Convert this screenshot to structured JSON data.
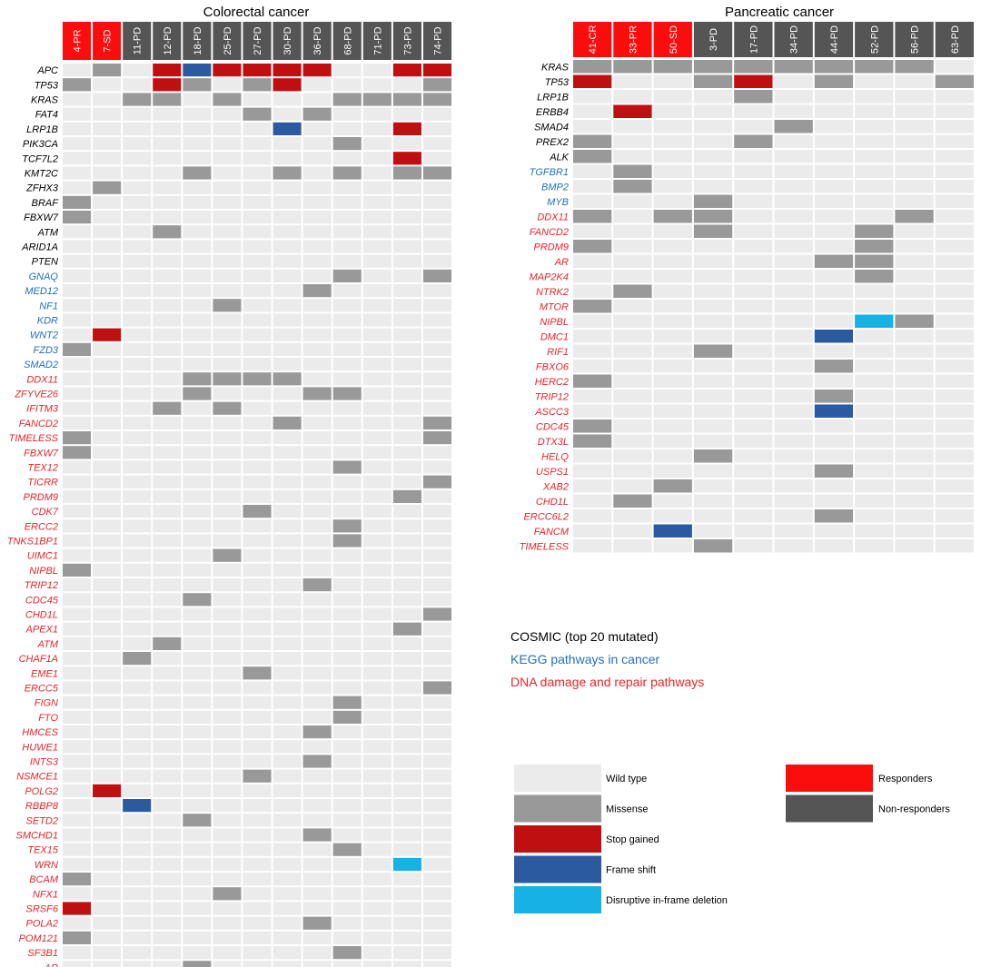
{
  "chart_data": [
    {
      "type": "heatmap",
      "title": "Colorectal cancer",
      "columns": [
        {
          "label": "4-PR",
          "group": "responder"
        },
        {
          "label": "7-SD",
          "group": "responder"
        },
        {
          "label": "11-PD",
          "group": "non-responder"
        },
        {
          "label": "12-PD",
          "group": "non-responder"
        },
        {
          "label": "18-PD",
          "group": "non-responder"
        },
        {
          "label": "25-PD",
          "group": "non-responder"
        },
        {
          "label": "27-PD",
          "group": "non-responder"
        },
        {
          "label": "30-PD",
          "group": "non-responder"
        },
        {
          "label": "36-PD",
          "group": "non-responder"
        },
        {
          "label": "68-PD",
          "group": "non-responder"
        },
        {
          "label": "71-PD",
          "group": "non-responder"
        },
        {
          "label": "73-PD",
          "group": "non-responder"
        },
        {
          "label": "74-PD",
          "group": "non-responder"
        }
      ],
      "rows": [
        {
          "gene": "APC",
          "category": "cosmic",
          "cells": {
            "1": "M",
            "3": "S",
            "4": "F",
            "5": "S",
            "6": "S",
            "7": "S",
            "8": "S",
            "11": "S",
            "12": "S"
          }
        },
        {
          "gene": "TP53",
          "category": "cosmic",
          "cells": {
            "0": "M",
            "3": "S",
            "4": "M",
            "6": "M",
            "7": "S",
            "12": "M"
          }
        },
        {
          "gene": "KRAS",
          "category": "cosmic",
          "cells": {
            "2": "M",
            "3": "M",
            "5": "M",
            "9": "M",
            "10": "M",
            "11": "M",
            "12": "M"
          }
        },
        {
          "gene": "FAT4",
          "category": "cosmic",
          "cells": {
            "6": "M",
            "8": "M"
          }
        },
        {
          "gene": "LRP1B",
          "category": "cosmic",
          "cells": {
            "7": "F",
            "11": "S"
          }
        },
        {
          "gene": "PIK3CA",
          "category": "cosmic",
          "cells": {
            "9": "M"
          }
        },
        {
          "gene": "TCF7L2",
          "category": "cosmic",
          "cells": {
            "11": "S"
          }
        },
        {
          "gene": "KMT2C",
          "category": "cosmic",
          "cells": {
            "4": "M",
            "7": "M",
            "9": "M",
            "11": "M",
            "12": "M"
          }
        },
        {
          "gene": "ZFHX3",
          "category": "cosmic",
          "cells": {
            "1": "M"
          }
        },
        {
          "gene": "BRAF",
          "category": "cosmic",
          "cells": {
            "0": "M"
          }
        },
        {
          "gene": "FBXW7",
          "category": "cosmic",
          "cells": {
            "0": "M"
          }
        },
        {
          "gene": "ATM",
          "category": "cosmic",
          "cells": {
            "3": "M"
          }
        },
        {
          "gene": "ARID1A",
          "category": "cosmic",
          "cells": {}
        },
        {
          "gene": "PTEN",
          "category": "cosmic",
          "cells": {}
        },
        {
          "gene": "GNAQ",
          "category": "kegg",
          "cells": {
            "9": "M",
            "12": "M"
          }
        },
        {
          "gene": "MED12",
          "category": "kegg",
          "cells": {
            "8": "M"
          }
        },
        {
          "gene": "NF1",
          "category": "kegg",
          "cells": {
            "5": "M"
          }
        },
        {
          "gene": "KDR",
          "category": "kegg",
          "cells": {}
        },
        {
          "gene": "WNT2",
          "category": "kegg",
          "cells": {
            "1": "S"
          }
        },
        {
          "gene": "FZD3",
          "category": "kegg",
          "cells": {
            "0": "M"
          }
        },
        {
          "gene": "SMAD2",
          "category": "kegg",
          "cells": {}
        },
        {
          "gene": "DDX11",
          "category": "dna",
          "cells": {
            "4": "M",
            "5": "M",
            "6": "M",
            "7": "M"
          }
        },
        {
          "gene": "ZFYVE26",
          "category": "dna",
          "cells": {
            "4": "M",
            "8": "M",
            "9": "M"
          }
        },
        {
          "gene": "IFITM3",
          "category": "dna",
          "cells": {
            "3": "M",
            "5": "M"
          }
        },
        {
          "gene": "FANCD2",
          "category": "dna",
          "cells": {
            "7": "M",
            "12": "M"
          }
        },
        {
          "gene": "TIMELESS",
          "category": "dna",
          "cells": {
            "0": "M",
            "12": "M"
          }
        },
        {
          "gene": "FBXW7",
          "category": "dna",
          "cells": {
            "0": "M"
          }
        },
        {
          "gene": "TEX12",
          "category": "dna",
          "cells": {
            "9": "M"
          }
        },
        {
          "gene": "TICRR",
          "category": "dna",
          "cells": {
            "12": "M"
          }
        },
        {
          "gene": "PRDM9",
          "category": "dna",
          "cells": {
            "11": "M"
          }
        },
        {
          "gene": "CDK7",
          "category": "dna",
          "cells": {
            "6": "M"
          }
        },
        {
          "gene": "ERCC2",
          "category": "dna",
          "cells": {
            "9": "M"
          }
        },
        {
          "gene": "TNKS1BP1",
          "category": "dna",
          "cells": {
            "9": "M"
          }
        },
        {
          "gene": "UIMC1",
          "category": "dna",
          "cells": {
            "5": "M"
          }
        },
        {
          "gene": "NIPBL",
          "category": "dna",
          "cells": {
            "0": "M"
          }
        },
        {
          "gene": "TRIP12",
          "category": "dna",
          "cells": {
            "8": "M"
          }
        },
        {
          "gene": "CDC45",
          "category": "dna",
          "cells": {
            "4": "M"
          }
        },
        {
          "gene": "CHD1L",
          "category": "dna",
          "cells": {
            "12": "M"
          }
        },
        {
          "gene": "APEX1",
          "category": "dna",
          "cells": {
            "11": "M"
          }
        },
        {
          "gene": "ATM",
          "category": "dna",
          "cells": {
            "3": "M"
          }
        },
        {
          "gene": "CHAF1A",
          "category": "dna",
          "cells": {
            "2": "M"
          }
        },
        {
          "gene": "EME1",
          "category": "dna",
          "cells": {
            "6": "M"
          }
        },
        {
          "gene": "ERCC5",
          "category": "dna",
          "cells": {
            "12": "M"
          }
        },
        {
          "gene": "FIGN",
          "category": "dna",
          "cells": {
            "9": "M"
          }
        },
        {
          "gene": "FTO",
          "category": "dna",
          "cells": {
            "9": "M"
          }
        },
        {
          "gene": "HMCES",
          "category": "dna",
          "cells": {
            "8": "M"
          }
        },
        {
          "gene": "HUWE1",
          "category": "dna",
          "cells": {}
        },
        {
          "gene": "INTS3",
          "category": "dna",
          "cells": {
            "8": "M"
          }
        },
        {
          "gene": "NSMCE1",
          "category": "dna",
          "cells": {
            "6": "M"
          }
        },
        {
          "gene": "POLG2",
          "category": "dna",
          "cells": {
            "1": "S"
          }
        },
        {
          "gene": "RBBP8",
          "category": "dna",
          "cells": {
            "2": "F"
          }
        },
        {
          "gene": "SETD2",
          "category": "dna",
          "cells": {
            "4": "M"
          }
        },
        {
          "gene": "SMCHD1",
          "category": "dna",
          "cells": {
            "8": "M"
          }
        },
        {
          "gene": "TEX15",
          "category": "dna",
          "cells": {
            "9": "M"
          }
        },
        {
          "gene": "WRN",
          "category": "dna",
          "cells": {
            "11": "D"
          }
        },
        {
          "gene": "BCAM",
          "category": "dna",
          "cells": {
            "0": "M"
          }
        },
        {
          "gene": "NFX1",
          "category": "dna",
          "cells": {
            "5": "M"
          }
        },
        {
          "gene": "SRSF6",
          "category": "dna",
          "cells": {
            "0": "S"
          }
        },
        {
          "gene": "POLA2",
          "category": "dna",
          "cells": {
            "8": "M"
          }
        },
        {
          "gene": "POM121",
          "category": "dna",
          "cells": {
            "0": "M"
          }
        },
        {
          "gene": "SF3B1",
          "category": "dna",
          "cells": {
            "9": "M"
          }
        },
        {
          "gene": "AR",
          "category": "dna",
          "cells": {
            "4": "M"
          }
        }
      ]
    },
    {
      "type": "heatmap",
      "title": "Pancreatic cancer",
      "columns": [
        {
          "label": "41-CR",
          "group": "responder"
        },
        {
          "label": "33-PR",
          "group": "responder"
        },
        {
          "label": "50-SD",
          "group": "responder"
        },
        {
          "label": "3-PD",
          "group": "non-responder"
        },
        {
          "label": "17-PD",
          "group": "non-responder"
        },
        {
          "label": "34-PD",
          "group": "non-responder"
        },
        {
          "label": "44-PD",
          "group": "non-responder"
        },
        {
          "label": "52-PD",
          "group": "non-responder"
        },
        {
          "label": "56-PD",
          "group": "non-responder"
        },
        {
          "label": "63-PD",
          "group": "non-responder"
        }
      ],
      "rows": [
        {
          "gene": "KRAS",
          "category": "cosmic",
          "cells": {
            "0": "M",
            "1": "M",
            "2": "M",
            "3": "M",
            "4": "M",
            "5": "M",
            "6": "M",
            "7": "M",
            "8": "M"
          }
        },
        {
          "gene": "TP53",
          "category": "cosmic",
          "cells": {
            "0": "S",
            "3": "M",
            "4": "S",
            "6": "M",
            "9": "M"
          }
        },
        {
          "gene": "LRP1B",
          "category": "cosmic",
          "cells": {
            "4": "M"
          }
        },
        {
          "gene": "ERBB4",
          "category": "cosmic",
          "cells": {
            "1": "S"
          }
        },
        {
          "gene": "SMAD4",
          "category": "cosmic",
          "cells": {
            "5": "M"
          }
        },
        {
          "gene": "PREX2",
          "category": "cosmic",
          "cells": {
            "0": "M",
            "4": "M"
          }
        },
        {
          "gene": "ALK",
          "category": "cosmic",
          "cells": {
            "0": "M"
          }
        },
        {
          "gene": "TGFBR1",
          "category": "kegg",
          "cells": {
            "1": "M"
          }
        },
        {
          "gene": "BMP2",
          "category": "kegg",
          "cells": {
            "1": "M"
          }
        },
        {
          "gene": "MYB",
          "category": "kegg",
          "cells": {
            "3": "M"
          }
        },
        {
          "gene": "DDX11",
          "category": "dna",
          "cells": {
            "0": "M",
            "2": "M",
            "3": "M",
            "8": "M"
          }
        },
        {
          "gene": "FANCD2",
          "category": "dna",
          "cells": {
            "3": "M",
            "7": "M"
          }
        },
        {
          "gene": "PRDM9",
          "category": "dna",
          "cells": {
            "0": "M",
            "7": "M"
          }
        },
        {
          "gene": "AR",
          "category": "dna",
          "cells": {
            "6": "M",
            "7": "M"
          }
        },
        {
          "gene": "MAP2K4",
          "category": "dna",
          "cells": {
            "7": "M"
          }
        },
        {
          "gene": "NTRK2",
          "category": "dna",
          "cells": {
            "1": "M"
          }
        },
        {
          "gene": "MTOR",
          "category": "dna",
          "cells": {
            "0": "M"
          }
        },
        {
          "gene": "NIPBL",
          "category": "dna",
          "cells": {
            "7": "D",
            "8": "M"
          }
        },
        {
          "gene": "DMC1",
          "category": "dna",
          "cells": {
            "6": "F"
          }
        },
        {
          "gene": "RIF1",
          "category": "dna",
          "cells": {
            "3": "M"
          }
        },
        {
          "gene": "FBXO6",
          "category": "dna",
          "cells": {
            "6": "M"
          }
        },
        {
          "gene": "HERC2",
          "category": "dna",
          "cells": {
            "0": "M"
          }
        },
        {
          "gene": "TRIP12",
          "category": "dna",
          "cells": {
            "6": "M"
          }
        },
        {
          "gene": "ASCC3",
          "category": "dna",
          "cells": {
            "6": "F"
          }
        },
        {
          "gene": "CDC45",
          "category": "dna",
          "cells": {
            "0": "M"
          }
        },
        {
          "gene": "DTX3L",
          "category": "dna",
          "cells": {
            "0": "M"
          }
        },
        {
          "gene": "HELQ",
          "category": "dna",
          "cells": {
            "3": "M"
          }
        },
        {
          "gene": "USPS1",
          "category": "dna",
          "cells": {
            "6": "M"
          }
        },
        {
          "gene": "XAB2",
          "category": "dna",
          "cells": {
            "2": "M"
          }
        },
        {
          "gene": "CHD1L",
          "category": "dna",
          "cells": {
            "1": "M"
          }
        },
        {
          "gene": "ERCC6L2",
          "category": "dna",
          "cells": {
            "6": "M"
          }
        },
        {
          "gene": "FANCM",
          "category": "dna",
          "cells": {
            "2": "F"
          }
        },
        {
          "gene": "TIMELESS",
          "category": "dna",
          "cells": {
            "3": "M"
          }
        }
      ]
    }
  ],
  "category_legend": [
    {
      "key": "cosmic",
      "label": "COSMIC (top 20 mutated)",
      "color": "#000000"
    },
    {
      "key": "kegg",
      "label": "KEGG pathways in cancer",
      "color": "#1f6fbd"
    },
    {
      "key": "dna",
      "label": "DNA damage and repair pathways",
      "color": "#e8242a"
    }
  ],
  "mutation_legend": [
    {
      "key": "W",
      "label": "Wild type",
      "color": "#ebebeb"
    },
    {
      "key": "M",
      "label": "Missense",
      "color": "#999999"
    },
    {
      "key": "S",
      "label": "Stop gained",
      "color": "#c00f10"
    },
    {
      "key": "F",
      "label": "Frame shift",
      "color": "#2c5aa0"
    },
    {
      "key": "D",
      "label": "Disruptive in-frame deletion",
      "color": "#17b1e6"
    }
  ],
  "group_legend": [
    {
      "key": "responder",
      "label": "Responders",
      "color": "#fc0d0d"
    },
    {
      "key": "non-responder",
      "label": "Non-responders",
      "color": "#555555"
    }
  ]
}
